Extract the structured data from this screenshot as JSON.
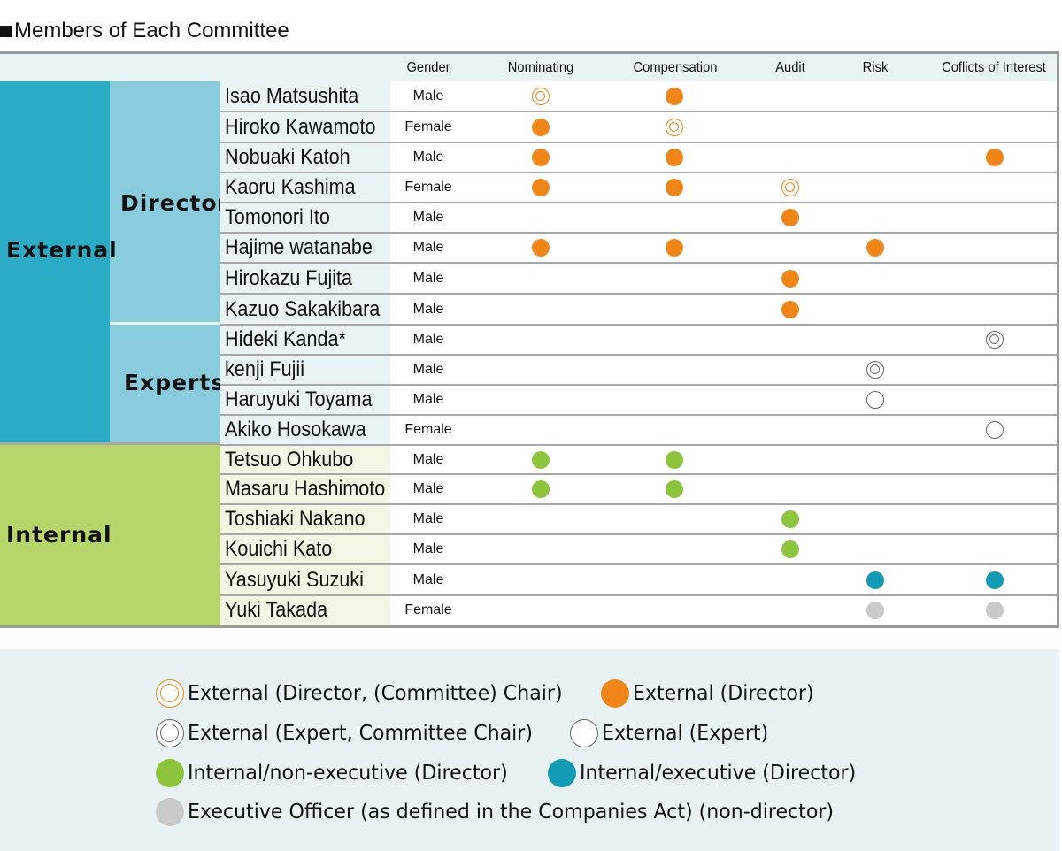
{
  "title": "Members of Each Committee",
  "columns": {
    "gender": "Gender",
    "nominating": "Nominating",
    "compensation": "Compensation",
    "audit": "Audit",
    "risk": "Risk",
    "conflicts": "Coflicts of Interest"
  },
  "groups": {
    "external": "External",
    "internal": "Internal",
    "director": "Director",
    "experts": "Experts"
  },
  "colors": {
    "external_block": "#2bacc6",
    "external_sub_block": "#88cbdc",
    "external_name_bg": "#e9f3f6",
    "internal_block": "#b7d66a",
    "internal_name_bg": "#f1f7e4",
    "orange": "#f08518",
    "green": "#8cc43c",
    "teal": "#139bb5",
    "gray": "#c9c9c9"
  },
  "members": [
    {
      "name": "Isao Matsushita",
      "gender": "Male",
      "nominating": "ext-dir-chair",
      "compensation": "ext-dir",
      "audit": "",
      "risk": "",
      "conflicts": ""
    },
    {
      "name": "Hiroko Kawamoto",
      "gender": "Female",
      "nominating": "ext-dir",
      "compensation": "ext-dir-chair",
      "audit": "",
      "risk": "",
      "conflicts": ""
    },
    {
      "name": "Nobuaki Katoh",
      "gender": "Male",
      "nominating": "ext-dir",
      "compensation": "ext-dir",
      "audit": "",
      "risk": "",
      "conflicts": "ext-dir"
    },
    {
      "name": "Kaoru Kashima",
      "gender": "Female",
      "nominating": "ext-dir",
      "compensation": "ext-dir",
      "audit": "ext-dir-chair",
      "risk": "",
      "conflicts": ""
    },
    {
      "name": "Tomonori Ito",
      "gender": "Male",
      "nominating": "",
      "compensation": "",
      "audit": "ext-dir",
      "risk": "",
      "conflicts": ""
    },
    {
      "name": "Hajime watanabe",
      "gender": "Male",
      "nominating": "ext-dir",
      "compensation": "ext-dir",
      "audit": "",
      "risk": "ext-dir",
      "conflicts": ""
    },
    {
      "name": "Hirokazu Fujita",
      "gender": "Male",
      "nominating": "",
      "compensation": "",
      "audit": "ext-dir",
      "risk": "",
      "conflicts": ""
    },
    {
      "name": "Kazuo Sakakibara",
      "gender": "Male",
      "nominating": "",
      "compensation": "",
      "audit": "ext-dir",
      "risk": "",
      "conflicts": ""
    },
    {
      "name": "Hideki Kanda*",
      "gender": "Male",
      "nominating": "",
      "compensation": "",
      "audit": "",
      "risk": "",
      "conflicts": "ext-expert-chair"
    },
    {
      "name": "kenji Fujii",
      "gender": "Male",
      "nominating": "",
      "compensation": "",
      "audit": "",
      "risk": "ext-expert-chair",
      "conflicts": ""
    },
    {
      "name": "Haruyuki Toyama",
      "gender": "Male",
      "nominating": "",
      "compensation": "",
      "audit": "",
      "risk": "ext-expert",
      "conflicts": ""
    },
    {
      "name": "Akiko Hosokawa",
      "gender": "Female",
      "nominating": "",
      "compensation": "",
      "audit": "",
      "risk": "",
      "conflicts": "ext-expert"
    },
    {
      "name": "Tetsuo Ohkubo",
      "gender": "Male",
      "nominating": "int-nonexec",
      "compensation": "int-nonexec",
      "audit": "",
      "risk": "",
      "conflicts": ""
    },
    {
      "name": "Masaru Hashimoto",
      "gender": "Male",
      "nominating": "int-nonexec",
      "compensation": "int-nonexec",
      "audit": "",
      "risk": "",
      "conflicts": ""
    },
    {
      "name": "Toshiaki Nakano",
      "gender": "Male",
      "nominating": "",
      "compensation": "",
      "audit": "int-nonexec",
      "risk": "",
      "conflicts": ""
    },
    {
      "name": "Kouichi Kato",
      "gender": "Male",
      "nominating": "",
      "compensation": "",
      "audit": "int-nonexec",
      "risk": "",
      "conflicts": ""
    },
    {
      "name": "Yasuyuki Suzuki",
      "gender": "Male",
      "nominating": "",
      "compensation": "",
      "audit": "",
      "risk": "int-exec",
      "conflicts": "int-exec"
    },
    {
      "name": "Yuki Takada",
      "gender": "Female",
      "nominating": "",
      "compensation": "",
      "audit": "",
      "risk": "exec-officer",
      "conflicts": "exec-officer"
    }
  ],
  "legend": [
    {
      "mark": "ext-dir-chair",
      "label": "External (Director, (Committee) Chair)"
    },
    {
      "mark": "ext-dir",
      "label": "External (Director)"
    },
    {
      "mark": "ext-expert-chair",
      "label": "External (Expert, Committee Chair)"
    },
    {
      "mark": "ext-expert",
      "label": "External (Expert)"
    },
    {
      "mark": "int-nonexec",
      "label": "Internal/non-executive (Director)"
    },
    {
      "mark": "int-exec",
      "label": "Internal/executive (Director)"
    },
    {
      "mark": "exec-officer",
      "label": "Executive Officer (as defined in the Companies Act) (non-director)"
    }
  ]
}
